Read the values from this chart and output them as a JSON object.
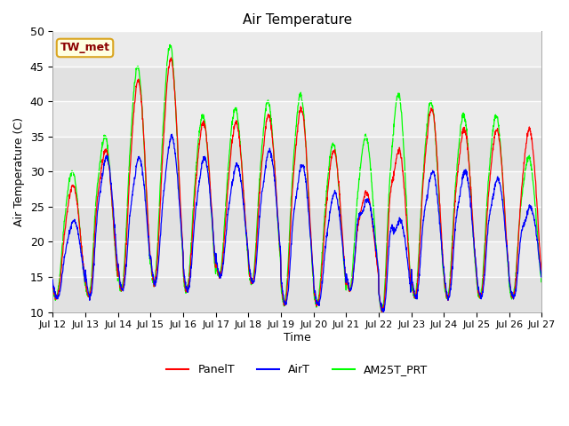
{
  "title": "Air Temperature",
  "ylabel": "Air Temperature (C)",
  "xlabel": "Time",
  "ylim": [
    10,
    50
  ],
  "annotation_text": "TW_met",
  "legend_labels": [
    "PanelT",
    "AirT",
    "AM25T_PRT"
  ],
  "line_colors_panel": "red",
  "line_colors_air": "blue",
  "line_colors_am25": "#00ff00",
  "background_color": "#ebebeb",
  "x_tick_labels": [
    "Jul 12",
    "Jul 13",
    "Jul 14",
    "Jul 15",
    "Jul 16",
    "Jul 17",
    "Jul 18",
    "Jul 19",
    "Jul 20",
    "Jul 21",
    "Jul 22",
    "Jul 23",
    "Jul 24",
    "Jul 25",
    "Jul 26",
    "Jul 27"
  ],
  "yticks": [
    10,
    15,
    20,
    25,
    30,
    35,
    40,
    45,
    50
  ],
  "num_points": 2000
}
